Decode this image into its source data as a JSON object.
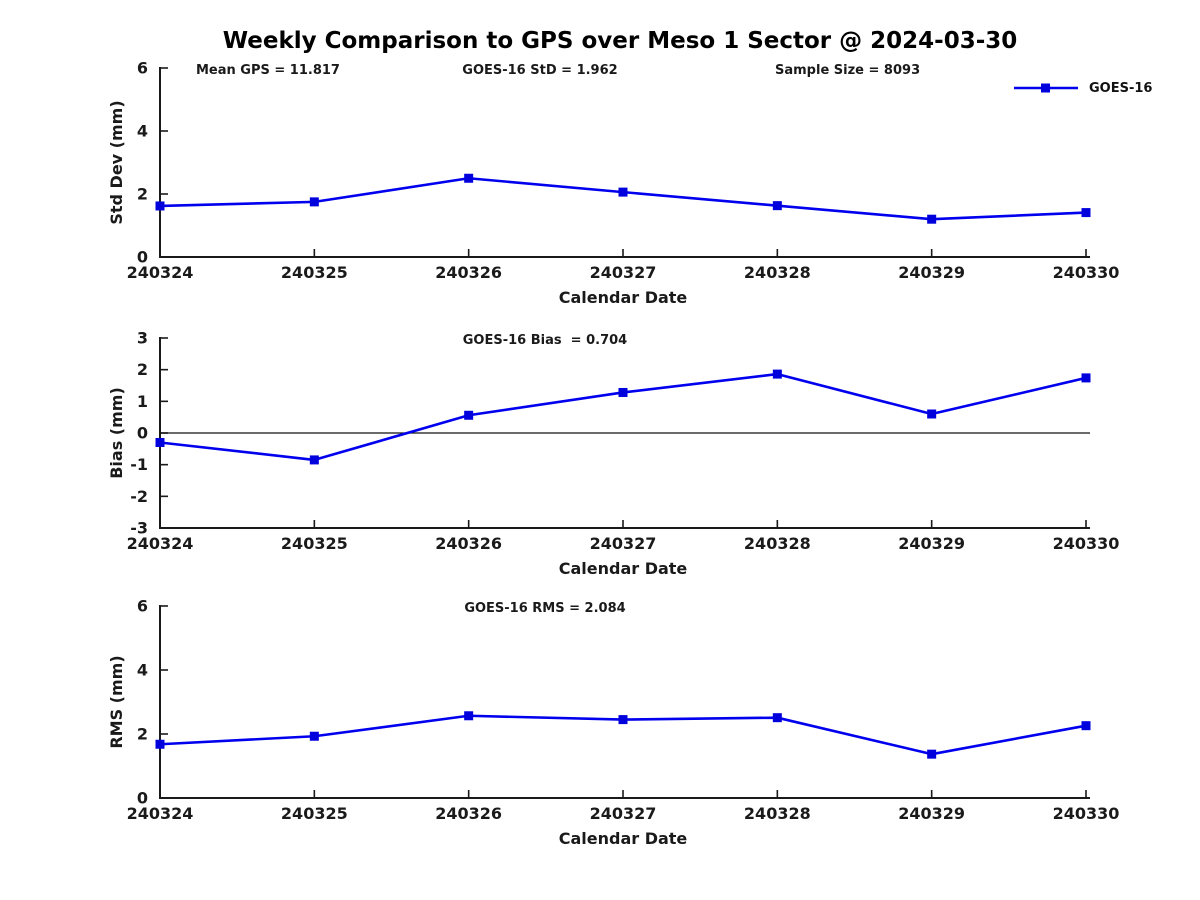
{
  "figure": {
    "title": "Weekly Comparison to GPS over Meso 1 Sector @ 2024-03-30",
    "legend": {
      "label": "GOES-16",
      "color": "#0000ee"
    }
  },
  "chart_data": [
    {
      "type": "line",
      "name": "std-dev",
      "annotations": [
        {
          "text": "Mean GPS = 11.817",
          "align": "left"
        },
        {
          "text": "GOES-16 StD = 1.962",
          "align": "center"
        },
        {
          "text": "Sample Size = 8093",
          "align": "right"
        }
      ],
      "xlabel": "Calendar Date",
      "ylabel": "Std Dev (mm)",
      "ylim": [
        0,
        6
      ],
      "yticks": [
        0,
        2,
        4,
        6
      ],
      "categories": [
        "240324",
        "240325",
        "240326",
        "240327",
        "240328",
        "240329",
        "240330"
      ],
      "series": [
        {
          "name": "GOES-16",
          "color": "#0000ee",
          "marker": "square",
          "values": [
            1.62,
            1.75,
            2.5,
            2.06,
            1.63,
            1.2,
            1.41
          ]
        }
      ],
      "zero_line": false,
      "grid": false,
      "legend_position": "outside-top-right"
    },
    {
      "type": "line",
      "name": "bias",
      "annotations": [
        {
          "text": "GOES-16 Bias  = 0.704",
          "align": "center"
        }
      ],
      "xlabel": "Calendar Date",
      "ylabel": "Bias (mm)",
      "ylim": [
        -3,
        3
      ],
      "yticks": [
        -3,
        -2,
        -1,
        0,
        1,
        2,
        3
      ],
      "categories": [
        "240324",
        "240325",
        "240326",
        "240327",
        "240328",
        "240329",
        "240330"
      ],
      "series": [
        {
          "name": "GOES-16",
          "color": "#0000ee",
          "marker": "square",
          "values": [
            -0.3,
            -0.85,
            0.56,
            1.28,
            1.86,
            0.6,
            1.74
          ]
        }
      ],
      "zero_line": true,
      "grid": false,
      "legend_position": "none"
    },
    {
      "type": "line",
      "name": "rms",
      "annotations": [
        {
          "text": "GOES-16 RMS = 2.084",
          "align": "center"
        }
      ],
      "xlabel": "Calendar Date",
      "ylabel": "RMS (mm)",
      "ylim": [
        0,
        6
      ],
      "yticks": [
        0,
        2,
        4,
        6
      ],
      "categories": [
        "240324",
        "240325",
        "240326",
        "240327",
        "240328",
        "240329",
        "240330"
      ],
      "series": [
        {
          "name": "GOES-16",
          "color": "#0000ee",
          "marker": "square",
          "values": [
            1.68,
            1.93,
            2.57,
            2.45,
            2.51,
            1.37,
            2.26
          ]
        }
      ],
      "zero_line": false,
      "grid": false,
      "legend_position": "none"
    }
  ]
}
